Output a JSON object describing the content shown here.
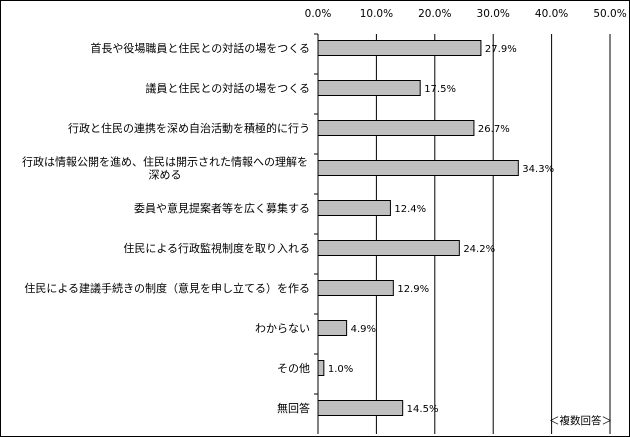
{
  "chart_data": {
    "type": "bar",
    "orientation": "horizontal",
    "categories": [
      "首長や役場職員と住民との対話の場をつくる",
      "議員と住民との対話の場をつくる",
      "行政と住民の連携を深め自治活動を積極的に行う",
      "行政は情報公開を進め、住民は開示された情報への理解を深める",
      "委員や意見提案者等を広く募集する",
      "住民による行政監視制度を取り入れる",
      "住民による建議手続きの制度（意見を申し立てる）を作る",
      "わからない",
      "その他",
      "無回答"
    ],
    "category_lines": [
      [
        "首長や役場職員と住民との対話の場をつくる"
      ],
      [
        "議員と住民との対話の場をつくる"
      ],
      [
        "行政と住民の連携を深め自治活動を積極的に行う"
      ],
      [
        "行政は情報公開を進め、住民は開示された情報への理解を",
        "深める"
      ],
      [
        "委員や意見提案者等を広く募集する"
      ],
      [
        "住民による行政監視制度を取り入れる"
      ],
      [
        "住民による建議手続きの制度（意見を申し立てる）を作る"
      ],
      [
        "わからない"
      ],
      [
        "その他"
      ],
      [
        "無回答"
      ]
    ],
    "values": [
      27.9,
      17.5,
      26.7,
      34.3,
      12.4,
      24.2,
      12.9,
      4.9,
      1.0,
      14.5
    ],
    "value_labels": [
      "27.9%",
      "17.5%",
      "26.7%",
      "34.3%",
      "12.4%",
      "24.2%",
      "12.9%",
      "4.9%",
      "1.0%",
      "14.5%"
    ],
    "xlim": [
      0,
      50
    ],
    "ticks": [
      0,
      10,
      20,
      30,
      40,
      50
    ],
    "tick_labels": [
      "0.0%",
      "10.0%",
      "20.0%",
      "30.0%",
      "40.0%",
      "50.0%"
    ],
    "grid": true,
    "bar_color": "#c0c0c0",
    "note": "＜複数回答＞"
  }
}
